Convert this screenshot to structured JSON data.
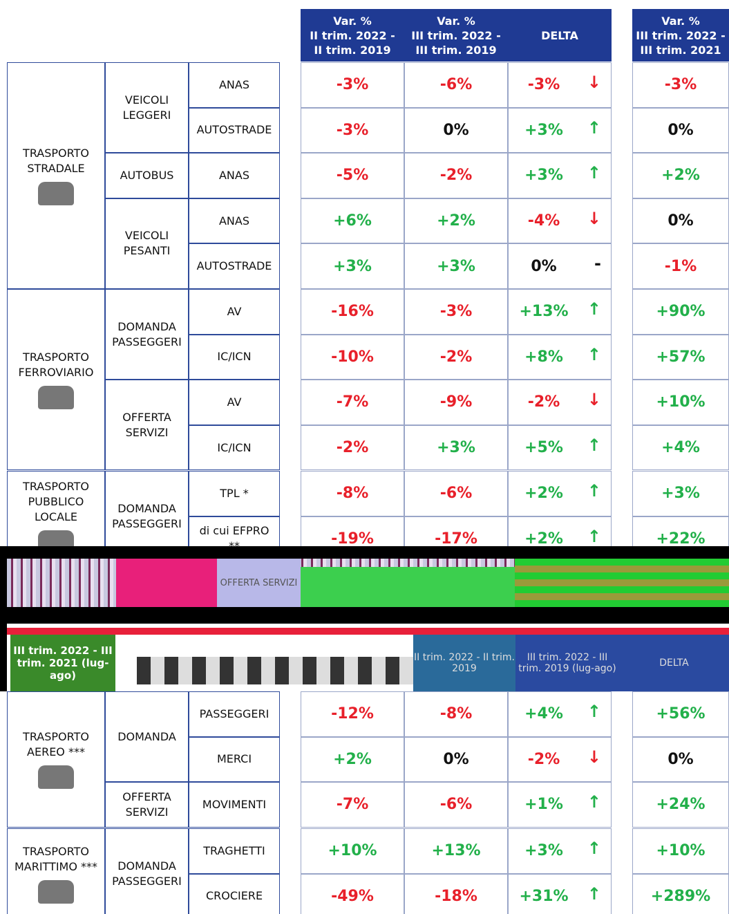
{
  "header": [
    [
      "Var. %",
      "II trim. 2022 -",
      "II trim. 2019"
    ],
    [
      "Var. %",
      "III trim. 2022 -",
      "III trim. 2019"
    ],
    [
      "DELTA"
    ],
    [
      "Var. %",
      "III trim. 2022 -",
      "III trim. 2021"
    ]
  ],
  "sections": [
    {
      "label": "TRASPORTO STRADALE",
      "groups": [
        {
          "label": "VEICOLI LEGGERI",
          "rows": [
            {
              "label": "ANAS",
              "values": [
                "-3%",
                "-6%",
                "-3%",
                "-3%"
              ],
              "arrow": "↓"
            },
            {
              "label": "AUTOSTRADE",
              "values": [
                "-3%",
                "0%",
                "+3%",
                "0%"
              ],
              "arrow": "↑"
            }
          ]
        },
        {
          "label": "AUTOBUS",
          "rows": [
            {
              "label": "ANAS",
              "values": [
                "-5%",
                "-2%",
                "+3%",
                "+2%"
              ],
              "arrow": "↑"
            }
          ]
        },
        {
          "label": "VEICOLI PESANTI",
          "rows": [
            {
              "label": "ANAS",
              "values": [
                "+6%",
                "+2%",
                "-4%",
                "0%"
              ],
              "arrow": "↓"
            },
            {
              "label": "AUTOSTRADE",
              "values": [
                "+3%",
                "+3%",
                "0%",
                "-1%"
              ],
              "arrow": "-"
            }
          ]
        }
      ]
    },
    {
      "label": "TRASPORTO FERROVIARIO",
      "groups": [
        {
          "label": "DOMANDA PASSEGGERI",
          "rows": [
            {
              "label": "AV",
              "values": [
                "-16%",
                "-3%",
                "+13%",
                "+90%"
              ],
              "arrow": "↑"
            },
            {
              "label": "IC/ICN",
              "values": [
                "-10%",
                "-2%",
                "+8%",
                "+57%"
              ],
              "arrow": "↑"
            }
          ]
        },
        {
          "label": "OFFERTA SERVIZI",
          "rows": [
            {
              "label": "AV",
              "values": [
                "-7%",
                "-9%",
                "-2%",
                "+10%"
              ],
              "arrow": "↓"
            },
            {
              "label": "IC/ICN",
              "values": [
                "-2%",
                "+3%",
                "+5%",
                "+4%"
              ],
              "arrow": "↑"
            }
          ]
        }
      ]
    },
    {
      "label": "TRASPORTO PUBBLICO LOCALE",
      "groups": [
        {
          "label": "DOMANDA PASSEGGERI",
          "rows": [
            {
              "label": "TPL *",
              "values": [
                "-8%",
                "-6%",
                "+2%",
                "+3%"
              ],
              "arrow": "↑"
            },
            {
              "label": "di cui EFPRO **",
              "values": [
                "-19%",
                "-17%",
                "+2%",
                "+22%"
              ],
              "arrow": "↑"
            }
          ]
        }
      ]
    },
    {
      "label": "TRASPORTO AEREO ***",
      "groups": [
        {
          "label": "DOMANDA",
          "rows": [
            {
              "label": "PASSEGGERI",
              "values": [
                "-12%",
                "-8%",
                "+4%",
                "+56%"
              ],
              "arrow": "↑"
            },
            {
              "label": "MERCI",
              "values": [
                "+2%",
                "0%",
                "-2%",
                "0%"
              ],
              "arrow": "↓"
            }
          ]
        },
        {
          "label": "OFFERTA SERVIZI",
          "rows": [
            {
              "label": "MOVIMENTI",
              "values": [
                "-7%",
                "-6%",
                "+1%",
                "+24%"
              ],
              "arrow": "↑"
            }
          ]
        }
      ]
    },
    {
      "label": "TRASPORTO MARITTIMO ***",
      "groups": [
        {
          "label": "DOMANDA PASSEGGERI",
          "rows": [
            {
              "label": "TRAGHETTI",
              "values": [
                "+10%",
                "+13%",
                "+3%",
                "+10%"
              ],
              "arrow": "↑"
            },
            {
              "label": "CROCIERE",
              "values": [
                "-49%",
                "-18%",
                "+31%",
                "+289%"
              ],
              "arrow": "↑"
            }
          ]
        }
      ]
    }
  ],
  "glitch": {
    "offer": "OFFERTA SERVIZI",
    "left": "III trim. 2022 - III trim. 2021 (lug-ago)",
    "h1": "II trim. 2022 - II trim. 2019",
    "h2": "III trim. 2022 - III trim. 2019 (lug-ago)",
    "h3": "DELTA"
  }
}
